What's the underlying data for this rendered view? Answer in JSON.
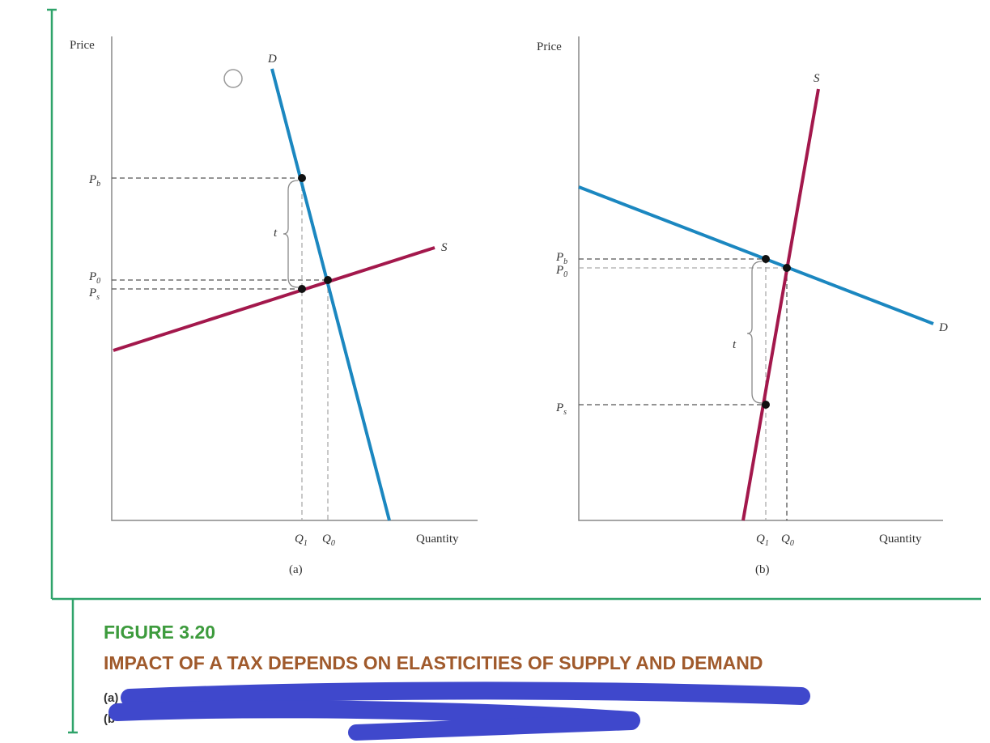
{
  "panels": [
    {
      "y_axis_label": "Price",
      "x_axis_label": "Quantity",
      "caption": "(a)",
      "demand_label": "D",
      "supply_label": "S",
      "tax_label": "t",
      "price_labels": [
        {
          "main": "P",
          "sub": "b"
        },
        {
          "main": "P",
          "sub": "0"
        },
        {
          "main": "P",
          "sub": "s"
        }
      ],
      "quantity_labels": [
        {
          "main": "Q",
          "sub": "1"
        },
        {
          "main": "Q",
          "sub": "0"
        }
      ]
    },
    {
      "y_axis_label": "Price",
      "x_axis_label": "Quantity",
      "caption": "(b)",
      "demand_label": "D",
      "supply_label": "S",
      "tax_label": "t",
      "price_labels": [
        {
          "main": "P",
          "sub": "b"
        },
        {
          "main": "P",
          "sub": "0"
        },
        {
          "main": "P",
          "sub": "s"
        }
      ],
      "quantity_labels": [
        {
          "main": "Q",
          "sub": "1"
        },
        {
          "main": "Q",
          "sub": "0"
        }
      ]
    }
  ],
  "figure": {
    "number": "FIGURE 3.20",
    "title": "IMPACT OF A TAX DEPENDS ON ELASTICITIES OF SUPPLY AND DEMAND",
    "notes": [
      "(a)",
      "(b"
    ]
  }
}
